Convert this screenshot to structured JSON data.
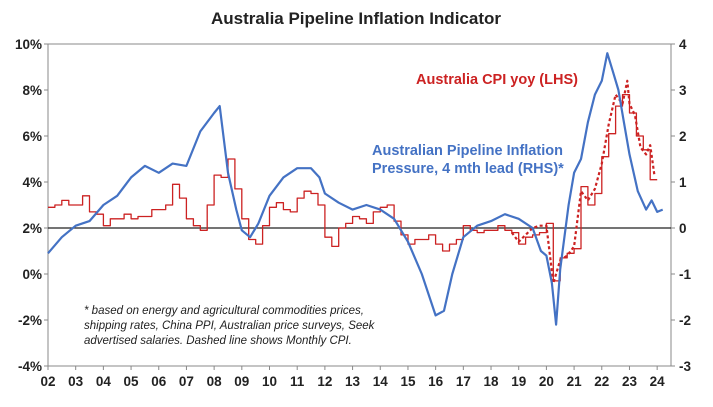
{
  "chart_data": {
    "type": "line",
    "title": "Australia Pipeline Inflation Indicator",
    "x_axis": {
      "range": [
        2002,
        2024.5
      ],
      "tick_labels": [
        "02",
        "03",
        "04",
        "05",
        "06",
        "07",
        "08",
        "09",
        "10",
        "11",
        "12",
        "13",
        "14",
        "15",
        "16",
        "17",
        "18",
        "19",
        "20",
        "21",
        "22",
        "23",
        "24"
      ]
    },
    "y_left": {
      "range": [
        -4,
        10
      ],
      "tick_labels": [
        "-4%",
        "-2%",
        "0%",
        "2%",
        "4%",
        "6%",
        "8%",
        "10%"
      ]
    },
    "y_right": {
      "range": [
        -3,
        4
      ],
      "tick_labels": [
        "-3",
        "-2",
        "-1",
        "0",
        "1",
        "2",
        "3",
        "4"
      ]
    },
    "grid": false,
    "zero_line": "right-axis 0",
    "series": [
      {
        "name": "Australia CPI yoy (LHS)",
        "axis": "left",
        "color": "#cc2222",
        "style": "step",
        "points": [
          [
            2002.0,
            2.9
          ],
          [
            2002.25,
            3.0
          ],
          [
            2002.5,
            3.2
          ],
          [
            2002.75,
            3.0
          ],
          [
            2003.0,
            3.0
          ],
          [
            2003.25,
            3.4
          ],
          [
            2003.5,
            2.7
          ],
          [
            2003.75,
            2.6
          ],
          [
            2004.0,
            2.1
          ],
          [
            2004.25,
            2.4
          ],
          [
            2004.5,
            2.4
          ],
          [
            2004.75,
            2.6
          ],
          [
            2005.0,
            2.4
          ],
          [
            2005.25,
            2.5
          ],
          [
            2005.5,
            2.5
          ],
          [
            2005.75,
            2.8
          ],
          [
            2006.0,
            2.8
          ],
          [
            2006.25,
            3.0
          ],
          [
            2006.5,
            3.9
          ],
          [
            2006.75,
            3.3
          ],
          [
            2007.0,
            2.4
          ],
          [
            2007.25,
            2.1
          ],
          [
            2007.5,
            1.9
          ],
          [
            2007.75,
            3.0
          ],
          [
            2008.0,
            4.3
          ],
          [
            2008.25,
            4.2
          ],
          [
            2008.5,
            5.0
          ],
          [
            2008.75,
            3.7
          ],
          [
            2009.0,
            2.4
          ],
          [
            2009.25,
            1.5
          ],
          [
            2009.5,
            1.3
          ],
          [
            2009.75,
            2.1
          ],
          [
            2010.0,
            2.9
          ],
          [
            2010.25,
            3.1
          ],
          [
            2010.5,
            2.8
          ],
          [
            2010.75,
            2.7
          ],
          [
            2011.0,
            3.3
          ],
          [
            2011.25,
            3.6
          ],
          [
            2011.5,
            3.5
          ],
          [
            2011.75,
            3.0
          ],
          [
            2012.0,
            1.6
          ],
          [
            2012.25,
            1.2
          ],
          [
            2012.5,
            2.0
          ],
          [
            2012.75,
            2.2
          ],
          [
            2013.0,
            2.5
          ],
          [
            2013.25,
            2.4
          ],
          [
            2013.5,
            2.2
          ],
          [
            2013.75,
            2.7
          ],
          [
            2014.0,
            2.9
          ],
          [
            2014.25,
            3.0
          ],
          [
            2014.5,
            2.3
          ],
          [
            2014.75,
            1.7
          ],
          [
            2015.0,
            1.3
          ],
          [
            2015.25,
            1.5
          ],
          [
            2015.5,
            1.5
          ],
          [
            2015.75,
            1.7
          ],
          [
            2016.0,
            1.3
          ],
          [
            2016.25,
            1.0
          ],
          [
            2016.5,
            1.3
          ],
          [
            2016.75,
            1.5
          ],
          [
            2017.0,
            2.1
          ],
          [
            2017.25,
            1.9
          ],
          [
            2017.5,
            1.8
          ],
          [
            2017.75,
            1.9
          ],
          [
            2018.0,
            1.9
          ],
          [
            2018.25,
            2.1
          ],
          [
            2018.5,
            1.9
          ],
          [
            2018.75,
            1.8
          ],
          [
            2019.0,
            1.3
          ],
          [
            2019.25,
            1.6
          ],
          [
            2019.5,
            1.7
          ],
          [
            2019.75,
            1.8
          ],
          [
            2020.0,
            2.2
          ],
          [
            2020.25,
            -0.3
          ],
          [
            2020.5,
            0.7
          ],
          [
            2020.75,
            0.9
          ],
          [
            2021.0,
            1.1
          ],
          [
            2021.25,
            3.8
          ],
          [
            2021.5,
            3.0
          ],
          [
            2021.75,
            3.5
          ],
          [
            2022.0,
            5.1
          ],
          [
            2022.25,
            6.1
          ],
          [
            2022.5,
            7.3
          ],
          [
            2022.75,
            7.8
          ],
          [
            2023.0,
            7.0
          ],
          [
            2023.25,
            6.0
          ],
          [
            2023.5,
            5.4
          ],
          [
            2023.75,
            4.1
          ]
        ]
      },
      {
        "name": "Monthly CPI",
        "axis": "left",
        "color": "#cc2222",
        "style": "dashed",
        "points": [
          [
            2018.75,
            1.8
          ],
          [
            2019.0,
            1.4
          ],
          [
            2019.25,
            1.7
          ],
          [
            2019.5,
            2.0
          ],
          [
            2019.75,
            2.1
          ],
          [
            2020.0,
            2.1
          ],
          [
            2020.25,
            -0.4
          ],
          [
            2020.5,
            0.6
          ],
          [
            2020.75,
            0.8
          ],
          [
            2021.0,
            1.2
          ],
          [
            2021.25,
            3.6
          ],
          [
            2021.5,
            3.2
          ],
          [
            2021.75,
            3.7
          ],
          [
            2022.0,
            4.8
          ],
          [
            2022.25,
            6.5
          ],
          [
            2022.5,
            7.8
          ],
          [
            2022.75,
            7.4
          ],
          [
            2022.92,
            8.4
          ],
          [
            2023.0,
            7.4
          ],
          [
            2023.2,
            6.9
          ],
          [
            2023.4,
            5.5
          ],
          [
            2023.6,
            5.2
          ],
          [
            2023.75,
            5.6
          ],
          [
            2023.9,
            4.3
          ]
        ]
      },
      {
        "name": "Australian Pipeline Inflation Pressure, 4 mth lead (RHS)*",
        "axis": "right",
        "color": "#4472c4",
        "style": "solid",
        "points": [
          [
            2002.0,
            -0.55
          ],
          [
            2002.5,
            -0.2
          ],
          [
            2003.0,
            0.05
          ],
          [
            2003.5,
            0.15
          ],
          [
            2004.0,
            0.5
          ],
          [
            2004.5,
            0.7
          ],
          [
            2005.0,
            1.1
          ],
          [
            2005.5,
            1.35
          ],
          [
            2006.0,
            1.2
          ],
          [
            2006.5,
            1.4
          ],
          [
            2007.0,
            1.35
          ],
          [
            2007.5,
            2.1
          ],
          [
            2008.0,
            2.5
          ],
          [
            2008.2,
            2.65
          ],
          [
            2008.5,
            1.2
          ],
          [
            2008.8,
            0.4
          ],
          [
            2009.0,
            -0.05
          ],
          [
            2009.3,
            -0.2
          ],
          [
            2009.6,
            0.1
          ],
          [
            2010.0,
            0.7
          ],
          [
            2010.5,
            1.1
          ],
          [
            2011.0,
            1.3
          ],
          [
            2011.5,
            1.3
          ],
          [
            2011.8,
            1.1
          ],
          [
            2012.0,
            0.75
          ],
          [
            2012.5,
            0.55
          ],
          [
            2013.0,
            0.4
          ],
          [
            2013.5,
            0.5
          ],
          [
            2014.0,
            0.4
          ],
          [
            2014.5,
            0.2
          ],
          [
            2015.0,
            -0.3
          ],
          [
            2015.5,
            -1.0
          ],
          [
            2016.0,
            -1.9
          ],
          [
            2016.3,
            -1.8
          ],
          [
            2016.6,
            -1.0
          ],
          [
            2017.0,
            -0.2
          ],
          [
            2017.5,
            0.05
          ],
          [
            2018.0,
            0.15
          ],
          [
            2018.5,
            0.3
          ],
          [
            2019.0,
            0.2
          ],
          [
            2019.5,
            0.0
          ],
          [
            2019.8,
            -0.5
          ],
          [
            2020.0,
            -0.6
          ],
          [
            2020.2,
            -1.2
          ],
          [
            2020.35,
            -2.1
          ],
          [
            2020.5,
            -0.9
          ],
          [
            2020.8,
            0.5
          ],
          [
            2021.0,
            1.2
          ],
          [
            2021.25,
            1.5
          ],
          [
            2021.5,
            2.3
          ],
          [
            2021.75,
            2.9
          ],
          [
            2022.0,
            3.2
          ],
          [
            2022.2,
            3.8
          ],
          [
            2022.4,
            3.4
          ],
          [
            2022.6,
            3.0
          ],
          [
            2022.8,
            2.3
          ],
          [
            2023.0,
            1.6
          ],
          [
            2023.3,
            0.8
          ],
          [
            2023.6,
            0.4
          ],
          [
            2023.8,
            0.6
          ],
          [
            2024.0,
            0.35
          ],
          [
            2024.2,
            0.4
          ]
        ]
      }
    ],
    "annotations": {
      "cpi": "Australia CPI yoy (LHS)",
      "pipeline_line1": "Australian Pipeline Inflation",
      "pipeline_line2": "Pressure, 4 mth lead (RHS)*",
      "footnote_line1": "* based on energy and agricultural commodities prices,",
      "footnote_line2": "shipping rates, China PPI, Australian price surveys, Seek",
      "footnote_line3": "advertised salaries. Dashed line shows Monthly CPI."
    }
  }
}
